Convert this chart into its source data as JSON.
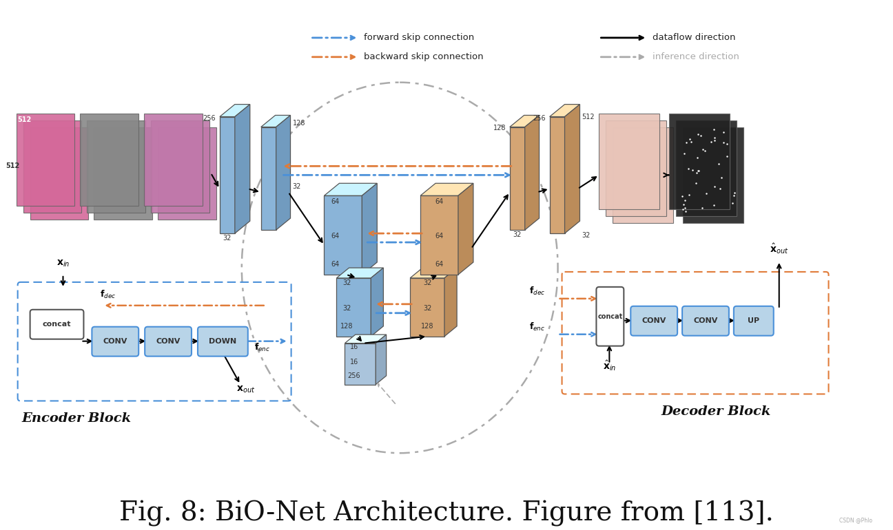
{
  "title": "Fig. 8: BiO-Net Architecture. Figure from [113].",
  "title_fontsize": 28,
  "title_font": "DejaVu Serif",
  "bg_color": "#ffffff",
  "blue_color": "#8ab4d8",
  "blue_light": "#b8d4e8",
  "tan_color": "#d4a574",
  "tan_light": "#e8c8a0",
  "bottleneck_color": "#a8c4dc",
  "light_blue_box": "#b8d4e8",
  "orange_dashed": "#e07b39",
  "blue_dashed": "#4a90d9",
  "gray_arrow": "#aaaaaa",
  "encoder_block_label": "Encoder Block",
  "decoder_block_label": "Decoder Block"
}
